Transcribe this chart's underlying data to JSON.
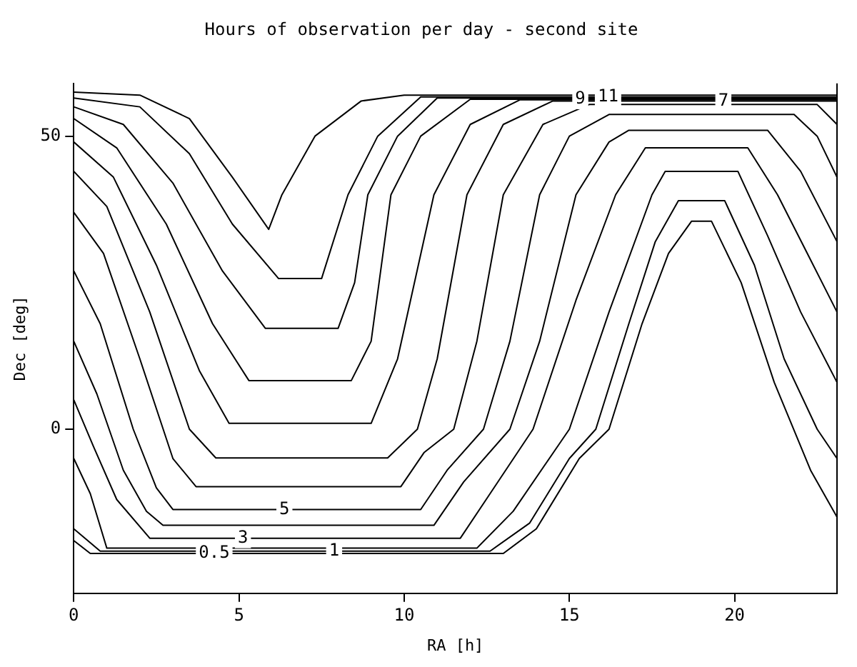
{
  "chart_data": {
    "type": "line",
    "title": "Hours of observation per day - second site",
    "xlabel": "RA [h]",
    "ylabel": "Dec [deg]",
    "xlim": [
      0,
      23.1
    ],
    "ylim": [
      -28,
      59
    ],
    "xticks": [
      0,
      5,
      10,
      15,
      20
    ],
    "yticks": [
      0,
      50
    ],
    "grid": false,
    "legend": false,
    "marker": "none",
    "line_style": "solid",
    "series": [
      {
        "color": "#000000",
        "x": [
          0,
          2,
          3.5,
          4.8,
          5.9,
          6.3,
          7.3,
          8.7,
          10,
          23.1
        ],
        "values": [
          57.5,
          57,
          53,
          43,
          34.1,
          40,
          50,
          56,
          57,
          57
        ]
      },
      {
        "name": "11",
        "color": "#000000",
        "x": [
          0,
          2,
          3.5,
          4.8,
          6.2,
          7.5,
          8.3,
          9.2,
          10.5,
          23.1
        ],
        "values": [
          56.5,
          55,
          47,
          35,
          25.7,
          25.7,
          40,
          50,
          56.7,
          56.7
        ]
      },
      {
        "color": "#000000",
        "x": [
          0,
          1.5,
          3,
          4.5,
          5.8,
          8,
          8.5,
          8.9,
          9.8,
          11,
          23.1
        ],
        "values": [
          55,
          52,
          42,
          27,
          17.2,
          17.2,
          25,
          40,
          50,
          56.5,
          56.5
        ]
      },
      {
        "name": "9",
        "color": "#000000",
        "x": [
          0,
          1.3,
          2.8,
          4.2,
          5.3,
          8.4,
          9,
          9.6,
          10.5,
          12,
          23.1
        ],
        "values": [
          53,
          48,
          35,
          18,
          8.3,
          8.3,
          15,
          40,
          50,
          56.3,
          56.3
        ]
      },
      {
        "color": "#000000",
        "x": [
          0,
          1.2,
          2.5,
          3.8,
          4.7,
          9,
          9.8,
          10.9,
          12,
          13.5,
          23.1
        ],
        "values": [
          49,
          43,
          28,
          10,
          1,
          1,
          12,
          40,
          52,
          56.2,
          56.2
        ]
      },
      {
        "name": "7",
        "color": "#000000",
        "x": [
          0,
          1,
          2.3,
          3.5,
          4.3,
          9.5,
          10.4,
          11,
          11.9,
          13,
          14.5,
          23.1
        ],
        "values": [
          44,
          38,
          20,
          0,
          -4.9,
          -4.9,
          0,
          12,
          40,
          52,
          56,
          56
        ]
      },
      {
        "color": "#000000",
        "x": [
          0,
          0.9,
          2,
          3,
          3.7,
          9.9,
          10.6,
          11.5,
          12.2,
          13,
          14.2,
          15.6,
          22.5,
          23.1
        ],
        "values": [
          37,
          30,
          12,
          -5,
          -9.8,
          -9.8,
          -4,
          0,
          15,
          40,
          52,
          55.4,
          55.4,
          52
        ]
      },
      {
        "name": "5",
        "color": "#000000",
        "x": [
          0,
          0.8,
          1.8,
          2.5,
          3,
          10.5,
          11.3,
          12.4,
          13.2,
          14.1,
          15,
          16.2,
          21.8,
          22.5,
          23.1
        ],
        "values": [
          27,
          18,
          0,
          -10,
          -13.7,
          -13.7,
          -7,
          0,
          15,
          40,
          50,
          53.7,
          53.7,
          50,
          43
        ]
      },
      {
        "color": "#000000",
        "x": [
          0,
          0.7,
          1.5,
          2.2,
          2.7,
          10.9,
          11.8,
          13.2,
          14.1,
          15.2,
          16.2,
          16.8,
          21,
          22,
          23.1
        ],
        "values": [
          15,
          6,
          -7,
          -14,
          -16.4,
          -16.4,
          -9,
          0,
          15,
          40,
          49,
          51,
          51,
          44,
          32
        ]
      },
      {
        "name": "3",
        "color": "#000000",
        "x": [
          0,
          0.6,
          1.3,
          2.3,
          11.7,
          12.6,
          13.9,
          15.2,
          16.4,
          17.3,
          20.4,
          21.3,
          22.2,
          23.1
        ],
        "values": [
          5,
          -3,
          -12,
          -18.6,
          -18.6,
          -11,
          0,
          22,
          40,
          48,
          48,
          40,
          30,
          20
        ]
      },
      {
        "color": "#000000",
        "x": [
          0,
          0.5,
          1,
          12.2,
          13.3,
          15,
          16.2,
          17.5,
          17.9,
          20.1,
          21,
          22,
          23.1
        ],
        "values": [
          -5,
          -11,
          -20.3,
          -20.3,
          -14,
          0,
          20,
          40,
          44,
          44,
          33,
          20,
          8
        ]
      },
      {
        "name": "1",
        "color": "#000000",
        "x": [
          0,
          0.8,
          12.6,
          13.8,
          15,
          15.8,
          16.8,
          17.6,
          18.3,
          19.7,
          20.6,
          21.5,
          22.5,
          23.1
        ],
        "values": [
          -17,
          -20.8,
          -20.8,
          -16,
          -5,
          0,
          18,
          32,
          39,
          39,
          28,
          12,
          0,
          -5
        ]
      },
      {
        "name": "0.5",
        "color": "#000000",
        "x": [
          0,
          0.5,
          13,
          14,
          15.3,
          16.2,
          17.2,
          18,
          18.7,
          19.3,
          20.2,
          21.2,
          22.3,
          23.1
        ],
        "values": [
          -19,
          -21.2,
          -21.2,
          -17,
          -5,
          0,
          18,
          30,
          35.5,
          35.5,
          25,
          8,
          -7,
          -15
        ]
      }
    ]
  }
}
